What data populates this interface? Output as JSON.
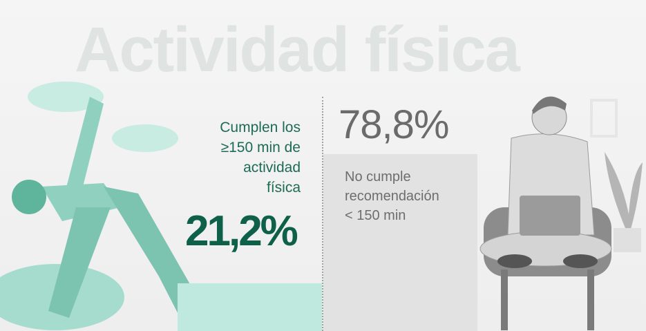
{
  "title": "Actividad física",
  "chart_data": {
    "type": "bar",
    "categories": [
      "Cumplen los ≥150 min de actividad física",
      "No cumple recomendación < 150 min"
    ],
    "values": [
      21.2,
      78.8
    ],
    "value_labels": [
      "21,2%",
      "78,8%"
    ],
    "ylim": [
      0,
      100
    ],
    "colors": [
      "#bfe9df",
      "#e2e2e2"
    ],
    "grid": false
  },
  "labels": {
    "green_lines": [
      "Cumplen los",
      "≥150 min de",
      "actividad",
      "física"
    ],
    "gray_lines": [
      "No cumple",
      "recomendación",
      "< 150 min"
    ]
  },
  "colors": {
    "green_text": "#0e6048",
    "gray_text": "#6b6b6b",
    "title": "#dfe3e1"
  }
}
